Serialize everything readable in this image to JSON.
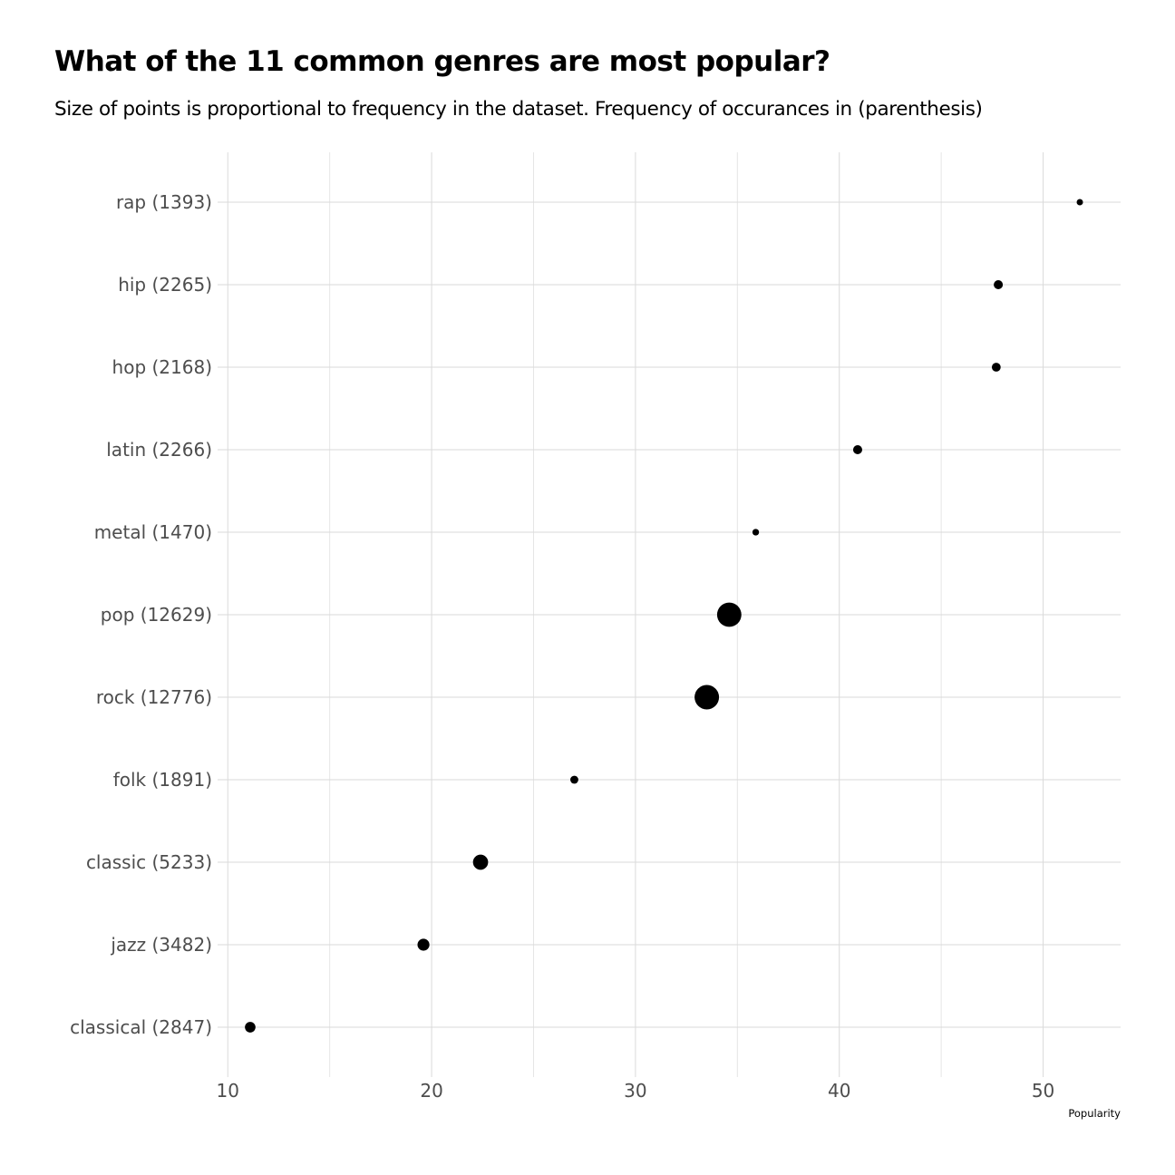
{
  "chart_data": {
    "type": "scatter",
    "title": "What of the 11 common genres are most popular?",
    "subtitle": "Size of points is proportional to frequency in the dataset. Frequency of occurances in (parenthesis)",
    "xlabel": "Popularity",
    "ylabel": "",
    "xlim": [
      9.5,
      53.8
    ],
    "x_ticks": [
      10,
      20,
      30,
      40,
      50
    ],
    "x_tick_labels": [
      "10",
      "20",
      "30",
      "40",
      "50"
    ],
    "grid": true,
    "legend": "none",
    "point_color": "#000000",
    "categories": [
      "rap (1393)",
      "hip (2265)",
      "hop (2168)",
      "latin (2266)",
      "metal (1470)",
      "pop (12629)",
      "rock (12776)",
      "folk (1891)",
      "classic (5233)",
      "jazz (3482)",
      "classical (2847)"
    ],
    "points": [
      {
        "genre": "rap",
        "x": 51.8,
        "frequency": 1393
      },
      {
        "genre": "hip",
        "x": 47.8,
        "frequency": 2265
      },
      {
        "genre": "hop",
        "x": 47.7,
        "frequency": 2168
      },
      {
        "genre": "latin",
        "x": 40.9,
        "frequency": 2266
      },
      {
        "genre": "metal",
        "x": 35.9,
        "frequency": 1470
      },
      {
        "genre": "pop",
        "x": 34.6,
        "frequency": 12629
      },
      {
        "genre": "rock",
        "x": 33.5,
        "frequency": 12776
      },
      {
        "genre": "folk",
        "x": 27.0,
        "frequency": 1891
      },
      {
        "genre": "classic",
        "x": 22.4,
        "frequency": 5233
      },
      {
        "genre": "jazz",
        "x": 19.6,
        "frequency": 3482
      },
      {
        "genre": "classical",
        "x": 11.1,
        "frequency": 2847
      }
    ]
  }
}
